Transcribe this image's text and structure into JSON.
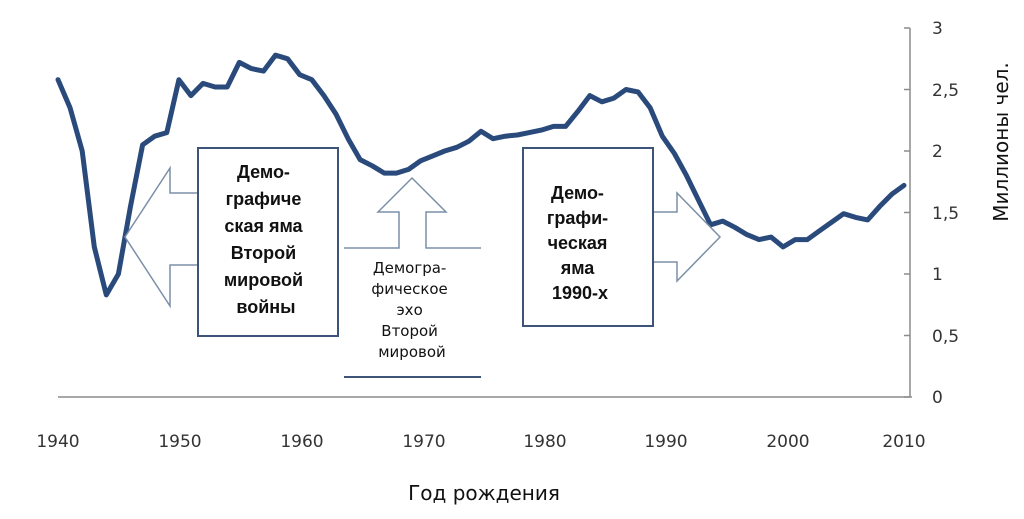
{
  "chart_data": {
    "type": "line",
    "xlabel": "Год рождения",
    "ylabel": "Миллионы чел.",
    "xlim": [
      1940,
      2010
    ],
    "ylim": [
      0,
      3
    ],
    "x_ticks": [
      "1940",
      "1950",
      "1960",
      "1970",
      "1980",
      "1990",
      "2000",
      "2010"
    ],
    "y_ticks": [
      "0",
      "0,5",
      "1",
      "1,5",
      "2",
      "2,5",
      "3"
    ],
    "y_axis_position": "right",
    "grid": false,
    "legend": "none",
    "line_color": "#2a4a7c",
    "series": [
      {
        "x": [
          1940,
          1941,
          1942,
          1943,
          1944,
          1945,
          1946,
          1947,
          1948,
          1949,
          1950,
          1951,
          1952,
          1953,
          1954,
          1955,
          1956,
          1957,
          1958,
          1959,
          1960,
          1961,
          1962,
          1963,
          1964,
          1965,
          1966,
          1967,
          1968,
          1969,
          1970,
          1971,
          1972,
          1973,
          1974,
          1975,
          1976,
          1977,
          1978,
          1979,
          1980,
          1981,
          1982,
          1983,
          1984,
          1985,
          1986,
          1987,
          1988,
          1989,
          1990,
          1991,
          1992,
          1993,
          1994,
          1995,
          1996,
          1997,
          1998,
          1999,
          2000,
          2001,
          2002,
          2003,
          2004,
          2005,
          2006,
          2007,
          2008,
          2009,
          2010
        ],
        "values": [
          2.58,
          2.35,
          2.0,
          1.22,
          0.83,
          1.0,
          1.55,
          2.05,
          2.12,
          2.15,
          2.58,
          2.45,
          2.55,
          2.52,
          2.52,
          2.72,
          2.67,
          2.65,
          2.78,
          2.75,
          2.62,
          2.58,
          2.45,
          2.3,
          2.1,
          1.93,
          1.88,
          1.82,
          1.82,
          1.85,
          1.92,
          1.96,
          2.0,
          2.03,
          2.08,
          2.16,
          2.1,
          2.12,
          2.13,
          2.15,
          2.17,
          2.2,
          2.2,
          2.32,
          2.45,
          2.4,
          2.43,
          2.5,
          2.48,
          2.35,
          2.12,
          1.98,
          1.8,
          1.6,
          1.4,
          1.43,
          1.38,
          1.32,
          1.28,
          1.3,
          1.22,
          1.28,
          1.28,
          1.35,
          1.42,
          1.49,
          1.46,
          1.44,
          1.55,
          1.65,
          1.72
        ]
      }
    ],
    "annotations": [
      {
        "lines": [
          "Демо-",
          "графиче",
          "ская яма",
          "Второй",
          "мировой",
          "войны"
        ],
        "target_year": 1944,
        "direction": "left"
      },
      {
        "lines": [
          "Демогра-",
          "фическое",
          "эхо",
          "Второй",
          "мировой"
        ],
        "target_year": 1969,
        "direction": "up"
      },
      {
        "lines": [
          "Демо-",
          "графи-",
          "ческая",
          "яма",
          "1990-х"
        ],
        "target_year": 1994,
        "direction": "right"
      }
    ]
  }
}
